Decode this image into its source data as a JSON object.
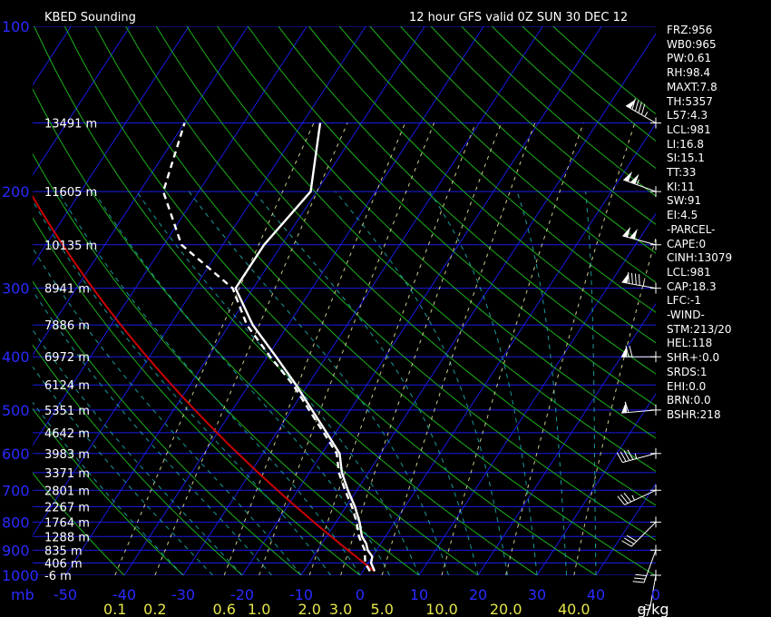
{
  "header": {
    "title": "KBED Sounding",
    "subtitle": "12 hour GFS valid 0Z SUN 30 DEC 12"
  },
  "indices": [
    "FRZ:956",
    "WB0:965",
    "PW:0.61",
    "RH:98.4",
    "MAXT:7.8",
    "TH:5357",
    "L57:4.3",
    "LCL:981",
    "LI:16.8",
    "SI:15.1",
    "TT:33",
    "KI:11",
    "SW:91",
    "EI:4.5",
    "-PARCEL-",
    "CAPE:0",
    "CINH:13079",
    "LCL:981",
    "CAP:18.3",
    "LFC:-1",
    "-WIND-",
    "STM:213/20",
    "HEL:118",
    "SHR+:0.0",
    "SRDS:1",
    "EHI:0.0",
    "BRN:0.0",
    "BSHR:218"
  ],
  "colors": {
    "isobar": "#1a1ae6",
    "isotherm": "#1a1ae6",
    "dry_adiabat": "#1cb01c",
    "moist_adiabat": "#1a9a9a",
    "mixing_ratio": "#c8c88c",
    "temperature": "#ffffff",
    "dewpoint": "#ffffff",
    "parcel": "#cc0000",
    "pressure_label": "#2a2aff",
    "height_label": "#ffffff",
    "temp_label": "#2a2aff",
    "mix_label": "#e6e64c"
  },
  "chart_data": {
    "type": "skew-t",
    "xlabel": "",
    "ylabel": "mb",
    "pressure_axis": {
      "label": "mb",
      "ticks": [
        100,
        200,
        300,
        400,
        500,
        600,
        700,
        800,
        900,
        1000
      ],
      "scale": "log",
      "range": [
        1000,
        100
      ]
    },
    "temperature_axis": {
      "ticks": [
        -50,
        -40,
        -30,
        -20,
        -10,
        0,
        10,
        20,
        30,
        40
      ]
    },
    "end_label": "0",
    "mixing_ratio_axis": {
      "unit": "g/kg",
      "ticks": [
        "0.1",
        "0.2",
        "0.6",
        "1.0",
        "2.0",
        "3.0",
        "5.0",
        "10.0",
        "20.0",
        "40.0"
      ],
      "values": [
        0.1,
        0.2,
        0.6,
        1.0,
        2.0,
        3.0,
        5.0,
        10.0,
        20.0,
        40.0
      ]
    },
    "height_labels": [
      {
        "p": 150,
        "text": "13491 m"
      },
      {
        "p": 200,
        "text": "11605 m"
      },
      {
        "p": 250,
        "text": "10135 m"
      },
      {
        "p": 300,
        "text": "8941 m"
      },
      {
        "p": 350,
        "text": "7886 m"
      },
      {
        "p": 400,
        "text": "6972 m"
      },
      {
        "p": 450,
        "text": "6124 m"
      },
      {
        "p": 500,
        "text": "5351 m"
      },
      {
        "p": 550,
        "text": "4642 m"
      },
      {
        "p": 600,
        "text": "3983 m"
      },
      {
        "p": 650,
        "text": "3371 m"
      },
      {
        "p": 700,
        "text": "2801 m"
      },
      {
        "p": 750,
        "text": "2267 m"
      },
      {
        "p": 800,
        "text": "1764 m"
      },
      {
        "p": 850,
        "text": "1288 m"
      },
      {
        "p": 900,
        "text": "835 m"
      },
      {
        "p": 950,
        "text": "406 m"
      },
      {
        "p": 1000,
        "text": "-6 m"
      }
    ],
    "temperature_profile": [
      {
        "p": 983,
        "t": 2.0
      },
      {
        "p": 950,
        "t": 0.5
      },
      {
        "p": 925,
        "t": 0.0
      },
      {
        "p": 900,
        "t": -1.5
      },
      {
        "p": 875,
        "t": -2.5
      },
      {
        "p": 850,
        "t": -4.0
      },
      {
        "p": 800,
        "t": -6.0
      },
      {
        "p": 750,
        "t": -8.5
      },
      {
        "p": 700,
        "t": -11.5
      },
      {
        "p": 650,
        "t": -14.5
      },
      {
        "p": 600,
        "t": -17.0
      },
      {
        "p": 550,
        "t": -21.5
      },
      {
        "p": 500,
        "t": -26.5
      },
      {
        "p": 450,
        "t": -32.0
      },
      {
        "p": 400,
        "t": -38.5
      },
      {
        "p": 350,
        "t": -46.0
      },
      {
        "p": 300,
        "t": -53.0
      },
      {
        "p": 250,
        "t": -53.0
      },
      {
        "p": 200,
        "t": -51.0
      },
      {
        "p": 150,
        "t": -57.0
      }
    ],
    "dewpoint_profile": [
      {
        "p": 983,
        "td": 1.2
      },
      {
        "p": 950,
        "td": -0.5
      },
      {
        "p": 900,
        "td": -2.0
      },
      {
        "p": 850,
        "td": -4.5
      },
      {
        "p": 800,
        "td": -6.5
      },
      {
        "p": 750,
        "td": -9.0
      },
      {
        "p": 700,
        "td": -12.0
      },
      {
        "p": 650,
        "td": -15.0
      },
      {
        "p": 600,
        "td": -17.5
      },
      {
        "p": 550,
        "td": -22.0
      },
      {
        "p": 500,
        "td": -27.0
      },
      {
        "p": 450,
        "td": -32.5
      },
      {
        "p": 400,
        "td": -39.5
      },
      {
        "p": 350,
        "td": -47.0
      },
      {
        "p": 300,
        "td": -53.5
      },
      {
        "p": 250,
        "td": -67.0
      },
      {
        "p": 200,
        "td": -76.0
      },
      {
        "p": 150,
        "td": -80.0
      }
    ],
    "parcel_path": {
      "start_p": 983,
      "start_t": 2.0,
      "end_p": 115
    },
    "wind_barbs": [
      {
        "p": 150,
        "dir": 300,
        "spd": 95
      },
      {
        "p": 200,
        "dir": 290,
        "spd": 105
      },
      {
        "p": 250,
        "dir": 285,
        "spd": 100
      },
      {
        "p": 300,
        "dir": 280,
        "spd": 95
      },
      {
        "p": 400,
        "dir": 270,
        "spd": 70
      },
      {
        "p": 500,
        "dir": 265,
        "spd": 60
      },
      {
        "p": 600,
        "dir": 255,
        "spd": 45
      },
      {
        "p": 700,
        "dir": 245,
        "spd": 35
      },
      {
        "p": 800,
        "dir": 225,
        "spd": 30
      },
      {
        "p": 900,
        "dir": 200,
        "spd": 30
      },
      {
        "p": 1000,
        "dir": 190,
        "spd": 15
      }
    ],
    "grid": true
  }
}
